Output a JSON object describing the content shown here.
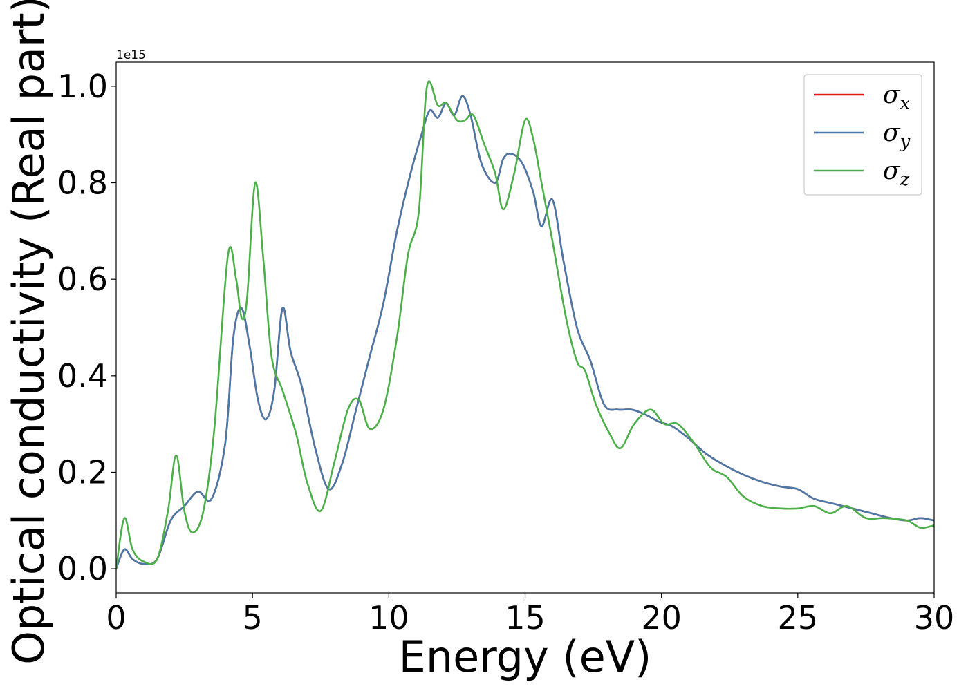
{
  "chart_data": {
    "type": "line",
    "xlabel": "Energy (eV)",
    "ylabel": "Optical conductivity (Real part)",
    "y_offset_label": "1e15",
    "xlim": [
      0,
      30
    ],
    "ylim": [
      -0.05,
      1.05
    ],
    "x_ticks": [
      0,
      5,
      10,
      15,
      20,
      25,
      30
    ],
    "x_tick_labels": [
      "0",
      "5",
      "10",
      "15",
      "20",
      "25",
      "30"
    ],
    "y_ticks": [
      0.0,
      0.2,
      0.4,
      0.6,
      0.8,
      1.0
    ],
    "y_tick_labels": [
      "0.0",
      "0.2",
      "0.4",
      "0.6",
      "0.8",
      "1.0"
    ],
    "grid": false,
    "legend_position": "top-right",
    "series": [
      {
        "name_symbol": "σ",
        "name_subscript": "x",
        "color": "#e41a1c",
        "x": [
          0,
          0.3,
          0.6,
          1.0,
          1.5,
          2.0,
          2.5,
          3.0,
          3.5,
          4.0,
          4.3,
          4.6,
          4.9,
          5.2,
          5.5,
          5.8,
          6.1,
          6.4,
          6.8,
          7.3,
          7.8,
          8.3,
          8.8,
          9.3,
          9.8,
          10.3,
          10.8,
          11.2,
          11.5,
          11.8,
          12.1,
          12.4,
          12.7,
          13.0,
          13.4,
          13.9,
          14.2,
          14.5,
          14.9,
          15.3,
          15.6,
          16.0,
          16.4,
          16.9,
          17.4,
          17.9,
          18.4,
          18.9,
          19.4,
          19.9,
          20.4,
          21.0,
          21.6,
          22.3,
          23.0,
          23.7,
          24.4,
          25.0,
          25.6,
          26.3,
          27.0,
          27.7,
          28.4,
          29.0,
          29.5,
          30.0
        ],
        "values": [
          0.0,
          0.04,
          0.02,
          0.01,
          0.02,
          0.1,
          0.13,
          0.16,
          0.145,
          0.26,
          0.48,
          0.54,
          0.46,
          0.35,
          0.31,
          0.37,
          0.54,
          0.45,
          0.38,
          0.25,
          0.165,
          0.22,
          0.33,
          0.44,
          0.55,
          0.7,
          0.82,
          0.9,
          0.95,
          0.935,
          0.965,
          0.94,
          0.98,
          0.94,
          0.84,
          0.8,
          0.85,
          0.86,
          0.84,
          0.78,
          0.71,
          0.765,
          0.64,
          0.5,
          0.43,
          0.34,
          0.33,
          0.33,
          0.32,
          0.305,
          0.295,
          0.27,
          0.24,
          0.215,
          0.195,
          0.18,
          0.17,
          0.165,
          0.145,
          0.135,
          0.125,
          0.115,
          0.105,
          0.1,
          0.105,
          0.1
        ]
      },
      {
        "name_symbol": "σ",
        "name_subscript": "y",
        "color": "#4a79a8",
        "x": [
          0,
          0.3,
          0.6,
          1.0,
          1.5,
          2.0,
          2.5,
          3.0,
          3.5,
          4.0,
          4.3,
          4.6,
          4.9,
          5.2,
          5.5,
          5.8,
          6.1,
          6.4,
          6.8,
          7.3,
          7.8,
          8.3,
          8.8,
          9.3,
          9.8,
          10.3,
          10.8,
          11.2,
          11.5,
          11.8,
          12.1,
          12.4,
          12.7,
          13.0,
          13.4,
          13.9,
          14.2,
          14.5,
          14.9,
          15.3,
          15.6,
          16.0,
          16.4,
          16.9,
          17.4,
          17.9,
          18.4,
          18.9,
          19.4,
          19.9,
          20.4,
          21.0,
          21.6,
          22.3,
          23.0,
          23.7,
          24.4,
          25.0,
          25.6,
          26.3,
          27.0,
          27.7,
          28.4,
          29.0,
          29.5,
          30.0
        ],
        "values": [
          0.0,
          0.04,
          0.02,
          0.01,
          0.02,
          0.1,
          0.13,
          0.16,
          0.145,
          0.26,
          0.48,
          0.54,
          0.46,
          0.35,
          0.31,
          0.37,
          0.54,
          0.45,
          0.38,
          0.25,
          0.165,
          0.22,
          0.33,
          0.44,
          0.55,
          0.7,
          0.82,
          0.9,
          0.95,
          0.935,
          0.965,
          0.94,
          0.98,
          0.94,
          0.84,
          0.8,
          0.85,
          0.86,
          0.84,
          0.78,
          0.71,
          0.765,
          0.64,
          0.5,
          0.43,
          0.34,
          0.33,
          0.33,
          0.32,
          0.305,
          0.295,
          0.27,
          0.24,
          0.215,
          0.195,
          0.18,
          0.17,
          0.165,
          0.145,
          0.135,
          0.125,
          0.115,
          0.105,
          0.1,
          0.105,
          0.1
        ]
      },
      {
        "name_symbol": "σ",
        "name_subscript": "z",
        "color": "#4daf4a",
        "x": [
          0,
          0.3,
          0.6,
          1.0,
          1.5,
          1.9,
          2.2,
          2.5,
          2.8,
          3.2,
          3.6,
          4.1,
          4.4,
          4.6,
          4.8,
          5.1,
          5.4,
          5.7,
          6.1,
          6.6,
          7.0,
          7.5,
          8.0,
          8.5,
          8.9,
          9.3,
          9.8,
          10.3,
          10.7,
          11.1,
          11.4,
          11.8,
          12.1,
          12.5,
          12.8,
          13.1,
          13.5,
          13.9,
          14.2,
          14.6,
          15.0,
          15.3,
          15.6,
          16.0,
          16.5,
          16.9,
          17.2,
          17.6,
          18.1,
          18.5,
          19.0,
          19.6,
          20.1,
          20.6,
          21.2,
          21.8,
          22.4,
          23.0,
          23.7,
          24.4,
          25.0,
          25.6,
          26.2,
          26.8,
          27.5,
          28.2,
          29.0,
          29.5,
          30.0
        ],
        "values": [
          0.0,
          0.105,
          0.04,
          0.015,
          0.02,
          0.12,
          0.235,
          0.12,
          0.075,
          0.12,
          0.29,
          0.65,
          0.6,
          0.52,
          0.56,
          0.8,
          0.64,
          0.44,
          0.37,
          0.28,
          0.18,
          0.12,
          0.22,
          0.33,
          0.35,
          0.29,
          0.33,
          0.48,
          0.65,
          0.74,
          1.0,
          0.96,
          0.965,
          0.93,
          0.93,
          0.94,
          0.88,
          0.82,
          0.745,
          0.82,
          0.93,
          0.89,
          0.8,
          0.68,
          0.52,
          0.43,
          0.41,
          0.34,
          0.28,
          0.25,
          0.3,
          0.33,
          0.3,
          0.3,
          0.26,
          0.21,
          0.19,
          0.15,
          0.13,
          0.125,
          0.125,
          0.13,
          0.115,
          0.13,
          0.105,
          0.105,
          0.1,
          0.085,
          0.09
        ]
      }
    ]
  }
}
